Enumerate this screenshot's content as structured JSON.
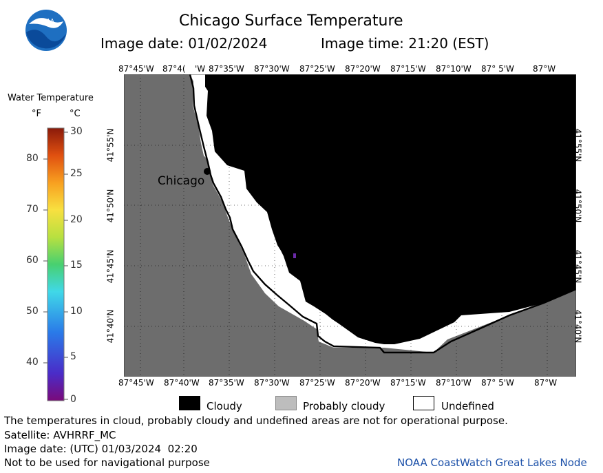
{
  "logo": {
    "text": "NOAA",
    "icon": "noaa-logo"
  },
  "header": {
    "title": "Chicago Surface Temperature",
    "image_date": "Image date: 01/02/2024",
    "image_time": "Image time: 21:20 (EST)"
  },
  "colorbar": {
    "title": "Water Temperature",
    "unit_f": "°F",
    "unit_c": "°C",
    "f_ticks": [
      "80",
      "70",
      "60",
      "50",
      "40"
    ],
    "c_ticks": [
      "30",
      "25",
      "20",
      "15",
      "10",
      "5",
      "0"
    ]
  },
  "map": {
    "lon_labels": [
      "87°45'W",
      "87°4(",
      "'W",
      "87°35'W",
      "87°30'W",
      "87°25'W",
      "87°20'W",
      "87°15'W",
      "87°10'W",
      "87° 5'W",
      "87°W"
    ],
    "lat_labels": [
      "41°55'N",
      "41°50'N",
      "41°45'N",
      "41°40'N"
    ],
    "bottom_lon_labels": [
      "87°45'W",
      "87°40'W",
      "87°35'W",
      "87°30'W",
      "87°25'W",
      "87°20'W",
      "87°15'W",
      "87°10'W",
      "87° 5'W",
      "87°W"
    ],
    "city_label": "Chicago",
    "colors": {
      "land": "#6d6d6d",
      "cloudy": "#000000",
      "undefined": "#ffffff"
    }
  },
  "legend": {
    "cloudy": "Cloudy",
    "probably_cloudy": "Probably cloudy",
    "undefined": "Undefined"
  },
  "footer": {
    "note": "The temperatures in cloud, probably cloudy and undefined areas are not for operational purpose.",
    "satellite": "Satellite: AVHRRF_MC",
    "utc_date": "Image date: (UTC) 01/03/2024  02:20",
    "nav_warning": "Not to be used for navigational purpose",
    "credit": "NOAA CoastWatch Great Lakes Node"
  }
}
